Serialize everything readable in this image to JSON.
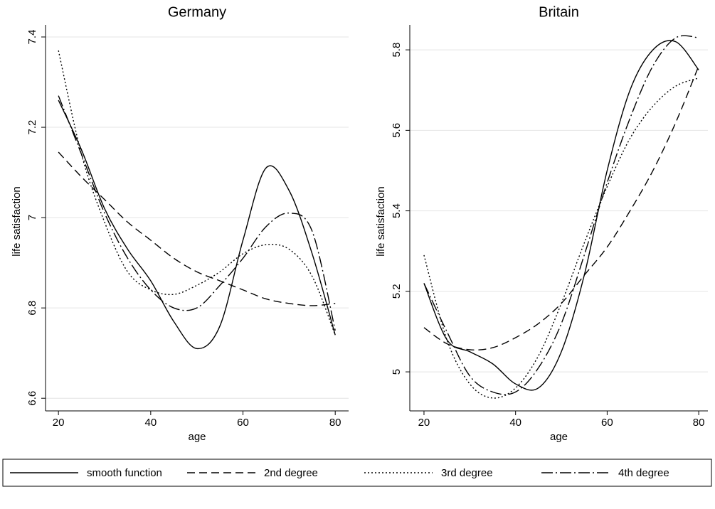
{
  "chart_data": [
    {
      "type": "line",
      "title": "Germany",
      "x_label": "age",
      "y_label": "life satisfaction",
      "x": [
        20,
        25,
        30,
        35,
        40,
        45,
        50,
        55,
        60,
        65,
        70,
        75,
        80
      ],
      "xlim": [
        17.2,
        82.9
      ],
      "xticks": [
        20,
        40,
        60,
        80
      ],
      "ylim": [
        6.572,
        7.474
      ],
      "yticks": [
        6.6,
        6.8,
        7,
        7.2,
        7.4
      ],
      "grid": true,
      "legend": "bottom",
      "series": [
        {
          "name": "smooth function",
          "color": "#000000",
          "line_style": "solid",
          "values": [
            7.26,
            7.15,
            7.02,
            6.93,
            6.86,
            6.77,
            6.71,
            6.76,
            6.95,
            7.11,
            7.06,
            6.92,
            6.74
          ]
        },
        {
          "name": "2nd degree",
          "color": "#000000",
          "line_style": "dashed",
          "values": [
            7.145,
            7.09,
            7.04,
            6.99,
            6.95,
            6.91,
            6.88,
            6.86,
            6.84,
            6.82,
            6.81,
            6.805,
            6.81
          ]
        },
        {
          "name": "3rd degree",
          "color": "#000000",
          "line_style": "dotted",
          "values": [
            7.37,
            7.14,
            6.99,
            6.88,
            6.84,
            6.83,
            6.85,
            6.88,
            6.92,
            6.94,
            6.93,
            6.87,
            6.74
          ]
        },
        {
          "name": "4th degree",
          "color": "#000000",
          "line_style": "dashdot",
          "values": [
            7.27,
            7.14,
            7.01,
            6.91,
            6.84,
            6.8,
            6.8,
            6.85,
            6.91,
            6.98,
            7.01,
            6.97,
            6.75
          ]
        }
      ]
    },
    {
      "type": "line",
      "title": "Britain",
      "x_label": "age",
      "y_label": "life satisfaction",
      "x": [
        20,
        25,
        30,
        35,
        40,
        45,
        50,
        55,
        60,
        65,
        70,
        75,
        80
      ],
      "xlim": [
        16.9,
        82.0
      ],
      "xticks": [
        20,
        40,
        60,
        80
      ],
      "ylim": [
        4.903,
        5.915
      ],
      "yticks": [
        5,
        5.2,
        5.4,
        5.6,
        5.8
      ],
      "grid": true,
      "series": [
        {
          "name": "smooth function",
          "color": "#000000",
          "line_style": "solid",
          "values": [
            5.22,
            5.08,
            5.05,
            5.02,
            4.97,
            4.96,
            5.05,
            5.24,
            5.5,
            5.7,
            5.8,
            5.82,
            5.75
          ]
        },
        {
          "name": "2nd degree",
          "color": "#000000",
          "line_style": "dashed",
          "values": [
            5.11,
            5.07,
            5.055,
            5.06,
            5.085,
            5.12,
            5.17,
            5.24,
            5.31,
            5.4,
            5.5,
            5.62,
            5.76
          ]
        },
        {
          "name": "3rd degree",
          "color": "#000000",
          "line_style": "dotted",
          "values": [
            5.29,
            5.08,
            4.97,
            4.935,
            4.96,
            5.04,
            5.17,
            5.32,
            5.46,
            5.58,
            5.66,
            5.71,
            5.73
          ]
        },
        {
          "name": "4th degree",
          "color": "#000000",
          "line_style": "dashdot",
          "values": [
            5.22,
            5.1,
            4.99,
            4.95,
            4.95,
            5.01,
            5.12,
            5.29,
            5.47,
            5.63,
            5.76,
            5.83,
            5.83
          ]
        }
      ]
    }
  ]
}
